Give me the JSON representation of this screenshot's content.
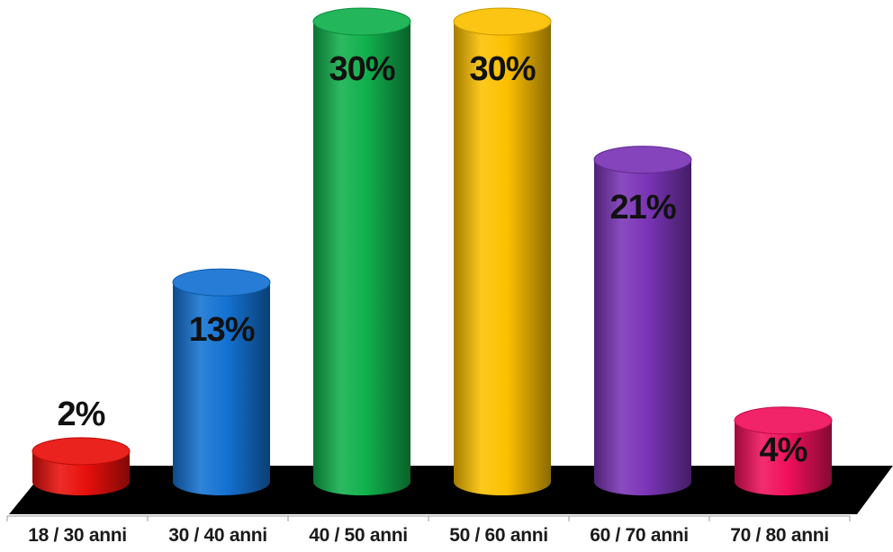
{
  "chart_data": {
    "type": "bar",
    "title": "",
    "xlabel": "",
    "ylabel": "",
    "ylim": [
      0,
      30
    ],
    "categories": [
      "18 / 30 anni",
      "30 / 40 anni",
      "40 / 50 anni",
      "50 / 60 anni",
      "60 / 70 anni",
      "70 / 80 anni"
    ],
    "values": [
      2,
      13,
      30,
      30,
      21,
      4
    ],
    "value_labels": [
      "2%",
      "13%",
      "30%",
      "30%",
      "21%",
      "4%"
    ],
    "colors": [
      "#e8100c",
      "#1472d2",
      "#10b04c",
      "#fcc000",
      "#7a34b6",
      "#f0105c"
    ],
    "floor_color": "#000000",
    "legend": "none",
    "grid": false
  }
}
